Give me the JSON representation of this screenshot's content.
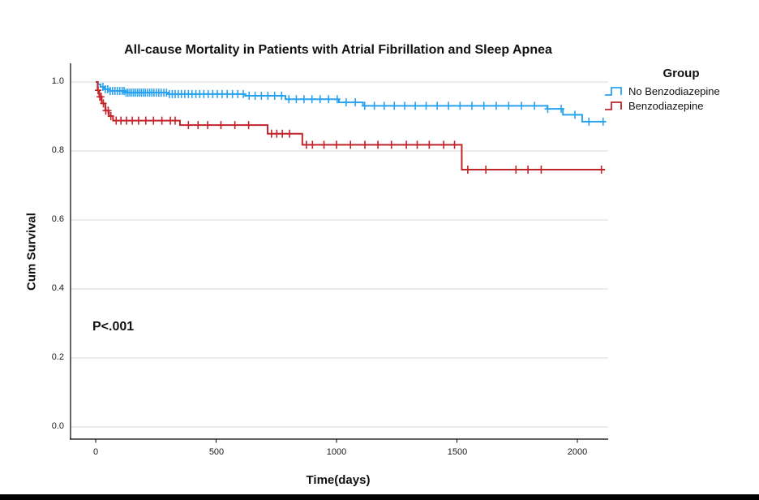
{
  "chart_data": {
    "type": "line",
    "subtype": "kaplan-meier-step",
    "title": "All-cause Mortality in Patients with Atrial Fibrillation and Sleep Apnea",
    "xlabel": "Time(days)",
    "ylabel": "Cum Survival",
    "x_ticks": [
      0,
      500,
      1000,
      1500,
      2000
    ],
    "x_tick_labels": [
      "0",
      "500",
      "1000",
      "1500",
      "2000"
    ],
    "y_ticks": [
      1.0,
      0.8,
      0.6,
      0.4,
      0.2,
      0.0
    ],
    "y_tick_labels": [
      "1.0",
      "0.8",
      "0.6",
      "0.4",
      "0.2",
      "0.0"
    ],
    "xlim": [
      -100,
      2120
    ],
    "ylim": [
      -0.04,
      1.05
    ],
    "grid": true,
    "gridline_color": "#d8d8d8",
    "axis_color": "#000000",
    "end_time": 2115,
    "legend_title": "Group",
    "legend_position": "right-top",
    "annotations": [
      {
        "text": "P<.001",
        "x": 0,
        "y": 0.3
      }
    ],
    "series": [
      {
        "name": "No Benzodiazepine",
        "color": "#29A3F0",
        "steps": [
          [
            0,
            1.0
          ],
          [
            10,
            0.993
          ],
          [
            20,
            0.986
          ],
          [
            35,
            0.979
          ],
          [
            60,
            0.974
          ],
          [
            120,
            0.969
          ],
          [
            300,
            0.965
          ],
          [
            620,
            0.96
          ],
          [
            788,
            0.95
          ],
          [
            1010,
            0.941
          ],
          [
            1110,
            0.931
          ],
          [
            1875,
            0.922
          ],
          [
            1940,
            0.905
          ],
          [
            2020,
            0.885
          ]
        ],
        "censor_times": [
          30,
          40,
          50,
          60,
          70,
          80,
          90,
          100,
          110,
          118,
          126,
          134,
          142,
          150,
          158,
          166,
          174,
          182,
          190,
          198,
          206,
          215,
          224,
          233,
          242,
          252,
          262,
          272,
          283,
          294,
          306,
          318,
          330,
          343,
          356,
          370,
          385,
          400,
          416,
          432,
          449,
          467,
          486,
          505,
          525,
          546,
          568,
          590,
          613,
          637,
          662,
          688,
          715,
          743,
          772,
          802,
          833,
          865,
          898,
          932,
          967,
          1003,
          1040,
          1078,
          1117,
          1157,
          1198,
          1240,
          1283,
          1327,
          1372,
          1418,
          1465,
          1513,
          1562,
          1612,
          1663,
          1715,
          1768,
          1822,
          1877,
          1933,
          1990,
          2048,
          2107
        ]
      },
      {
        "name": "Benzodiazepine",
        "color": "#C1242B",
        "steps": [
          [
            0,
            1.0
          ],
          [
            8,
            0.976
          ],
          [
            15,
            0.957
          ],
          [
            25,
            0.938
          ],
          [
            40,
            0.917
          ],
          [
            55,
            0.901
          ],
          [
            72,
            0.888
          ],
          [
            350,
            0.875
          ],
          [
            714,
            0.85
          ],
          [
            858,
            0.818
          ],
          [
            1520,
            0.746
          ]
        ],
        "censor_times": [
          10,
          17,
          23,
          32,
          42,
          52,
          63,
          85,
          105,
          128,
          152,
          178,
          208,
          240,
          275,
          310,
          330,
          385,
          425,
          465,
          520,
          578,
          635,
          730,
          752,
          775,
          805,
          875,
          900,
          948,
          1000,
          1058,
          1118,
          1172,
          1228,
          1290,
          1335,
          1385,
          1445,
          1490,
          1545,
          1620,
          1745,
          1795,
          1850,
          2100
        ]
      }
    ]
  },
  "page": {
    "background": "#ffffff",
    "bottom_bar_color": "#000000"
  }
}
